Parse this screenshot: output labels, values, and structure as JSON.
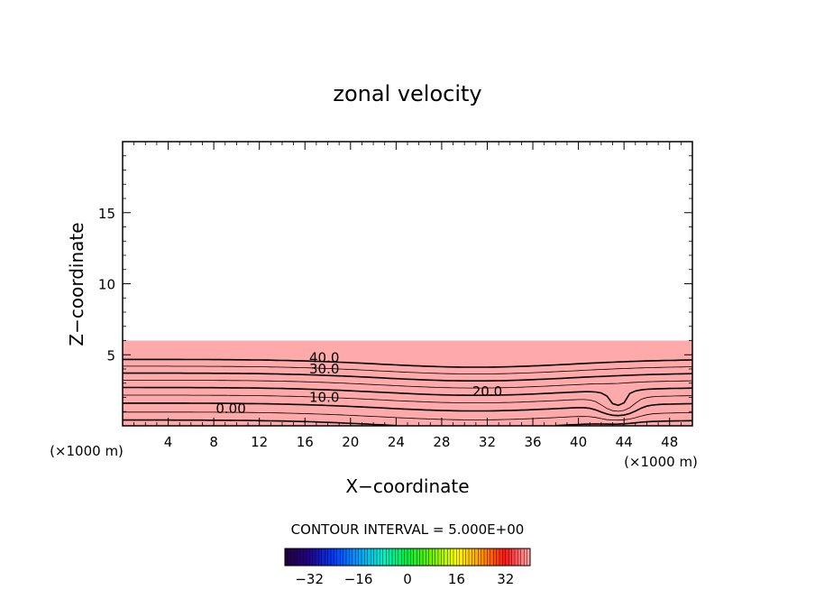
{
  "chart_data": {
    "type": "contour",
    "title": "zonal velocity",
    "xlabel": "X−coordinate",
    "ylabel": "Z−coordinate",
    "x_unit_label": "(×1000 m)",
    "x_unit_label_right": "(×1000 m)",
    "xlim": [
      0,
      50
    ],
    "ylim": [
      0,
      20
    ],
    "x_ticks": [
      4,
      8,
      12,
      16,
      20,
      24,
      28,
      32,
      36,
      40,
      44,
      48
    ],
    "y_ticks": [
      5,
      10,
      15
    ],
    "contour_interval_text": "CONTOUR INTERVAL = 5.000E+00",
    "contour_labels": [
      {
        "text": "40.0",
        "x": 17.7,
        "z": 4.8
      },
      {
        "text": "30.0",
        "x": 17.7,
        "z": 4.0
      },
      {
        "text": "20.0",
        "x": 32.0,
        "z": 2.4
      },
      {
        "text": "10.0",
        "x": 17.7,
        "z": 2.0
      },
      {
        "text": "0.00",
        "x": 9.5,
        "z": 1.2
      }
    ],
    "colorbar": {
      "min": -40,
      "max": 40,
      "tick_values": [
        -32,
        -16,
        0,
        16,
        32
      ],
      "tick_labels": [
        "−32",
        "−16",
        "0",
        "16",
        "32"
      ]
    }
  }
}
